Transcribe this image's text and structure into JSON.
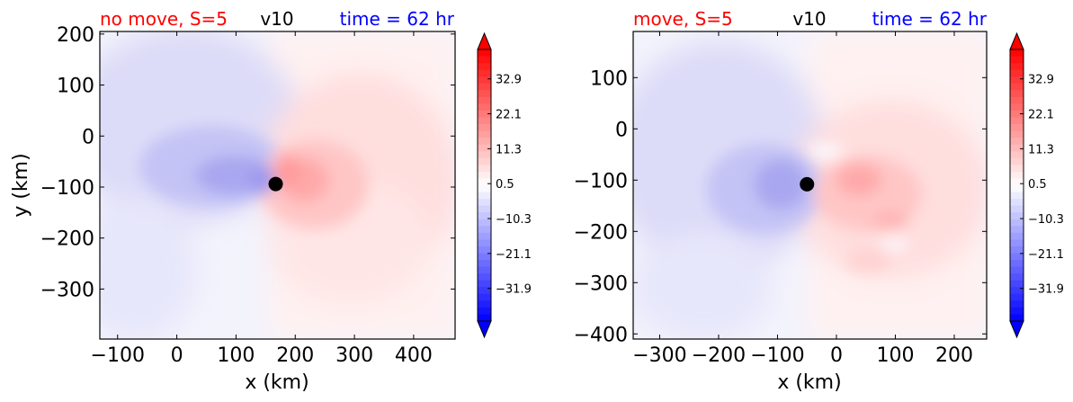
{
  "chart_data": [
    {
      "type": "heatmap",
      "title_left": "no move, S=5",
      "title_center": "v10",
      "title_right": "time = 62 hr",
      "title_colors": {
        "left": "#ff0000",
        "center": "#000000",
        "right": "#0000ff"
      },
      "xlabel": "x (km)",
      "ylabel": "y (km)",
      "xlim": [
        -130,
        470
      ],
      "ylim": [
        -398,
        205
      ],
      "xticks": [
        -100,
        0,
        100,
        200,
        300,
        400
      ],
      "yticks": [
        200,
        100,
        0,
        -100,
        -200,
        -300
      ],
      "xtick_labels": [
        "−100",
        "0",
        "100",
        "200",
        "300",
        "400"
      ],
      "ytick_labels": [
        "200",
        "100",
        "0",
        "−100",
        "−200",
        "−300"
      ],
      "center_marker": {
        "x": 167,
        "y": -94
      },
      "colorbar": {
        "vmin": -42,
        "vmax": 42,
        "cmap": "bwr",
        "extend": "both",
        "ticks": [
          32.9,
          22.1,
          11.3,
          0.5,
          -10.3,
          -21.1,
          -31.9
        ],
        "tick_labels": [
          "32.9",
          "22.1",
          "11.3",
          "0.5",
          "−10.3",
          "−21.1",
          "−31.9"
        ]
      }
    },
    {
      "type": "heatmap",
      "title_left": "move, S=5",
      "title_center": "v10",
      "title_right": "time = 62 hr",
      "title_colors": {
        "left": "#ff0000",
        "center": "#000000",
        "right": "#0000ff"
      },
      "xlabel": "x (km)",
      "ylabel": "",
      "xlim": [
        -345,
        255
      ],
      "ylim": [
        -410,
        190
      ],
      "xticks": [
        -300,
        -200,
        -100,
        0,
        100,
        200
      ],
      "yticks": [
        100,
        0,
        -100,
        -200,
        -300,
        -400
      ],
      "xtick_labels": [
        "−300",
        "−200",
        "−100",
        "0",
        "100",
        "200"
      ],
      "ytick_labels": [
        "100",
        "0",
        "−100",
        "−200",
        "−300",
        "−400"
      ],
      "center_marker": {
        "x": -50,
        "y": -108
      },
      "colorbar": {
        "vmin": -42,
        "vmax": 42,
        "cmap": "bwr",
        "extend": "both",
        "ticks": [
          32.9,
          22.1,
          11.3,
          0.5,
          -10.3,
          -21.1,
          -31.9
        ],
        "tick_labels": [
          "32.9",
          "22.1",
          "11.3",
          "0.5",
          "−10.3",
          "−21.1",
          "−31.9"
        ]
      }
    }
  ]
}
